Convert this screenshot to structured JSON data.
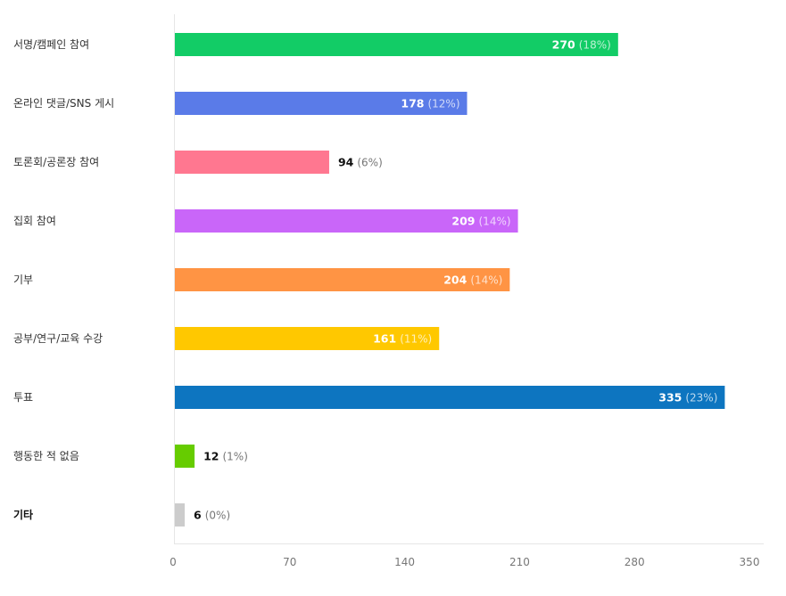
{
  "chart_data": {
    "type": "bar",
    "orientation": "horizontal",
    "categories": [
      "서명/캠페인 참여",
      "온라인 댓글/SNS 게시",
      "토론회/공론장 참여",
      "집회 참여",
      "기부",
      "공부/연구/교육 수강",
      "투표",
      "행동한 적 없음",
      "기타"
    ],
    "values": [
      270,
      178,
      94,
      209,
      204,
      161,
      335,
      12,
      6
    ],
    "percent_labels": [
      "(18%)",
      "(12%)",
      "(6%)",
      "(14%)",
      "(14%)",
      "(11%)",
      "(23%)",
      "(1%)",
      "(0%)"
    ],
    "colors": [
      "#12cc66",
      "#5a7be8",
      "#ff7790",
      "#c966f9",
      "#ff9444",
      "#ffc800",
      "#0d75c0",
      "#66cc00",
      "#cccccc"
    ],
    "xlim": [
      0,
      350
    ],
    "x_ticks": [
      "0",
      "70",
      "140",
      "210",
      "280",
      "350"
    ],
    "grid": false,
    "legend": "none"
  }
}
